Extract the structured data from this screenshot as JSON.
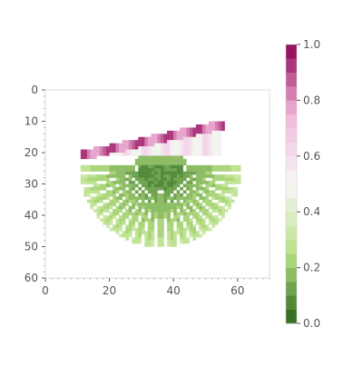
{
  "chart_data": {
    "type": "heatmap",
    "title": "",
    "xlabel": "",
    "ylabel": "",
    "x_range": [
      0,
      70
    ],
    "y_range": [
      0,
      60
    ],
    "y_inverted": true,
    "x_ticks": [
      0,
      20,
      40,
      60
    ],
    "y_ticks": [
      0,
      10,
      20,
      30,
      40,
      50,
      60
    ],
    "grid": false,
    "pattern": {
      "description_of_field": "fan of radial rays",
      "center": [
        36,
        25
      ],
      "lower_fan_radius": 25,
      "upper_band_row_range": [
        12,
        22
      ],
      "upper_band_x_range": [
        11,
        56
      ],
      "ray_count_lower": 20
    },
    "colorbar": {
      "position": "right",
      "min": 0.0,
      "max": 1.0,
      "ticks": [
        0.0,
        0.2,
        0.4,
        0.6,
        0.8,
        1.0
      ],
      "tick_labels": [
        "0.0",
        "0.2",
        "0.4",
        "0.6",
        "0.8",
        "1.0"
      ],
      "levels": 20,
      "colormap": "PiYG_r",
      "colors": {
        "low": "#276419",
        "mid_low": "#b8e186",
        "center": "#f7f7f7",
        "mid_high": "#f1b6da",
        "high": "#8e0152"
      }
    }
  }
}
